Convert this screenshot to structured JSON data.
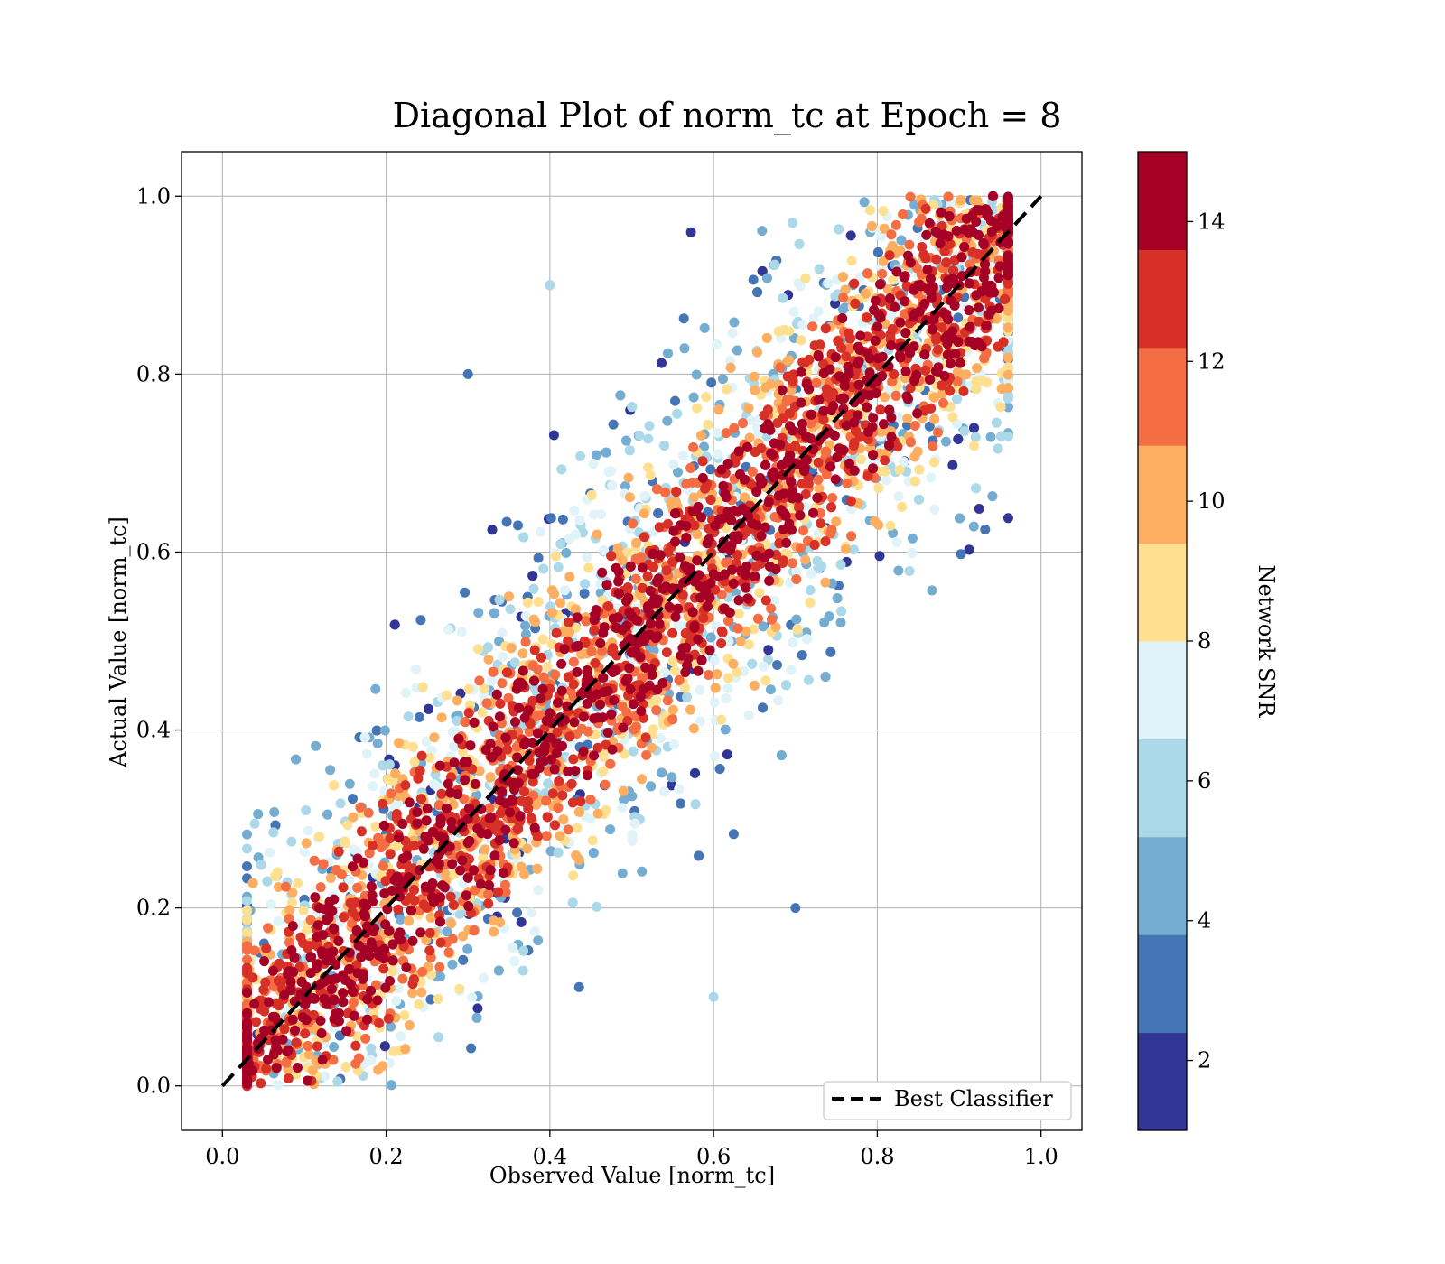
{
  "chart_data": {
    "type": "scatter",
    "title": "Diagonal Plot of norm_tc at Epoch = 8",
    "xlabel": "Observed Value [norm_tc]",
    "ylabel": "Actual Value [norm_tc]",
    "xlim": [
      -0.05,
      1.05
    ],
    "ylim": [
      -0.05,
      1.05
    ],
    "xticks": [
      0.0,
      0.2,
      0.4,
      0.6,
      0.8,
      1.0
    ],
    "yticks": [
      0.0,
      0.2,
      0.4,
      0.6,
      0.8,
      1.0
    ],
    "xtick_labels": [
      "0.0",
      "0.2",
      "0.4",
      "0.6",
      "0.8",
      "1.0"
    ],
    "ytick_labels": [
      "0.0",
      "0.2",
      "0.4",
      "0.6",
      "0.8",
      "1.0"
    ],
    "grid": true,
    "reference_line": {
      "name": "Best Classifier",
      "x": [
        0.0,
        1.0
      ],
      "y": [
        0.0,
        1.0
      ],
      "style": "dashed",
      "color": "#000000"
    },
    "legend": {
      "position": "lower-right",
      "entries": [
        "Best Classifier"
      ]
    },
    "colorbar": {
      "label": "Network SNR",
      "range": [
        1,
        15
      ],
      "ticks": [
        2,
        4,
        6,
        8,
        10,
        12,
        14
      ],
      "tick_labels": [
        "2",
        "4",
        "6",
        "8",
        "10",
        12,
        "14"
      ],
      "colors": [
        "#313695",
        "#4575b4",
        "#74add1",
        "#abd9e9",
        "#e0f3f8",
        "#fee090",
        "#fdae61",
        "#f46d43",
        "#d73027",
        "#a50026"
      ]
    },
    "scatter_description": {
      "x_range": [
        0.03,
        0.96
      ],
      "y_range": [
        0.0,
        1.0
      ],
      "high_snr_band_halfwidth": 0.1,
      "low_snr_spread_halfwidth": 0.4,
      "sample_points": [
        {
          "x": 0.1,
          "y": 0.1,
          "snr": 14
        },
        {
          "x": 0.3,
          "y": 0.3,
          "snr": 14
        },
        {
          "x": 0.5,
          "y": 0.5,
          "snr": 14
        },
        {
          "x": 0.7,
          "y": 0.7,
          "snr": 14
        },
        {
          "x": 0.9,
          "y": 0.9,
          "snr": 14
        },
        {
          "x": 0.3,
          "y": 0.8,
          "snr": 3
        },
        {
          "x": 0.7,
          "y": 0.2,
          "snr": 3
        },
        {
          "x": 0.4,
          "y": 0.9,
          "snr": 6
        },
        {
          "x": 0.6,
          "y": 0.1,
          "snr": 6
        },
        {
          "x": 0.35,
          "y": 0.55,
          "snr": 10
        },
        {
          "x": 0.65,
          "y": 0.45,
          "snr": 10
        }
      ]
    }
  }
}
